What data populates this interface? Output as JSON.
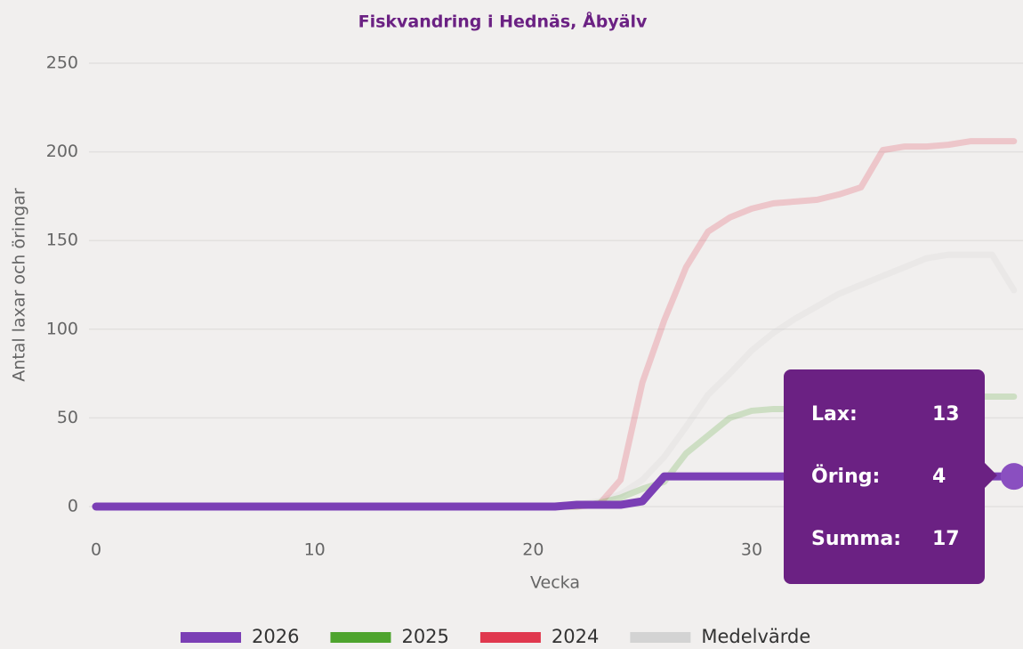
{
  "chart_data": {
    "type": "line",
    "title": "Fiskvandring i Hednäs, Åbyälv",
    "xlabel": "Vecka",
    "ylabel": "Antal laxar och öringar",
    "x": [
      0,
      1,
      2,
      3,
      4,
      5,
      6,
      7,
      8,
      9,
      10,
      11,
      12,
      13,
      14,
      15,
      16,
      17,
      18,
      19,
      20,
      21,
      22,
      23,
      24,
      25,
      26,
      27,
      28,
      29,
      30,
      31,
      32,
      33,
      34,
      35,
      36,
      37,
      38,
      39,
      40,
      41,
      42
    ],
    "series": [
      {
        "name": "2026",
        "color": "#7b3fb5",
        "values": [
          0,
          0,
          0,
          0,
          0,
          0,
          0,
          0,
          0,
          0,
          0,
          0,
          0,
          0,
          0,
          0,
          0,
          0,
          0,
          0,
          0,
          0,
          1,
          1,
          1,
          3,
          17,
          17,
          17,
          17,
          17,
          17,
          17,
          17,
          17,
          17,
          17,
          17,
          17,
          17,
          17,
          17,
          17
        ]
      },
      {
        "name": "2025",
        "color": "#4ea42e",
        "values": [
          0,
          0,
          0,
          0,
          0,
          0,
          0,
          0,
          0,
          0,
          0,
          0,
          0,
          0,
          0,
          0,
          0,
          0,
          0,
          0,
          0,
          0,
          0,
          2,
          5,
          10,
          14,
          30,
          40,
          50,
          54,
          55,
          55,
          55,
          56,
          58,
          60,
          61,
          62,
          62,
          62,
          62,
          62
        ]
      },
      {
        "name": "2024",
        "color": "#e0384e",
        "values": [
          0,
          0,
          0,
          0,
          0,
          0,
          0,
          0,
          0,
          0,
          0,
          0,
          0,
          0,
          0,
          0,
          0,
          0,
          0,
          0,
          0,
          0,
          0,
          1,
          15,
          70,
          105,
          135,
          155,
          163,
          168,
          171,
          172,
          173,
          176,
          180,
          201,
          203,
          203,
          204,
          206,
          206,
          206
        ]
      },
      {
        "name": "Medelvärde",
        "color": "#d3d3d3",
        "values": [
          0,
          0,
          0,
          0,
          0,
          0,
          0,
          0,
          0,
          0,
          0,
          0,
          0,
          0,
          0,
          0,
          0,
          0,
          0,
          0,
          0,
          0,
          1,
          3,
          7,
          15,
          28,
          45,
          63,
          75,
          88,
          98,
          106,
          113,
          120,
          125,
          130,
          135,
          140,
          142,
          142,
          142,
          122
        ]
      }
    ],
    "xlim": [
      0,
      42.5
    ],
    "xticks": [
      0,
      10,
      20,
      30
    ],
    "ylim": [
      0,
      250
    ],
    "yticks": [
      0,
      50,
      100,
      150,
      200,
      250
    ],
    "grid": true,
    "legend": "bottom",
    "tooltip": {
      "rows": [
        {
          "label": "Lax:",
          "value": 13
        },
        {
          "label": "Öring:",
          "value": 4
        },
        {
          "label": "Summa:",
          "value": 17
        }
      ]
    }
  }
}
